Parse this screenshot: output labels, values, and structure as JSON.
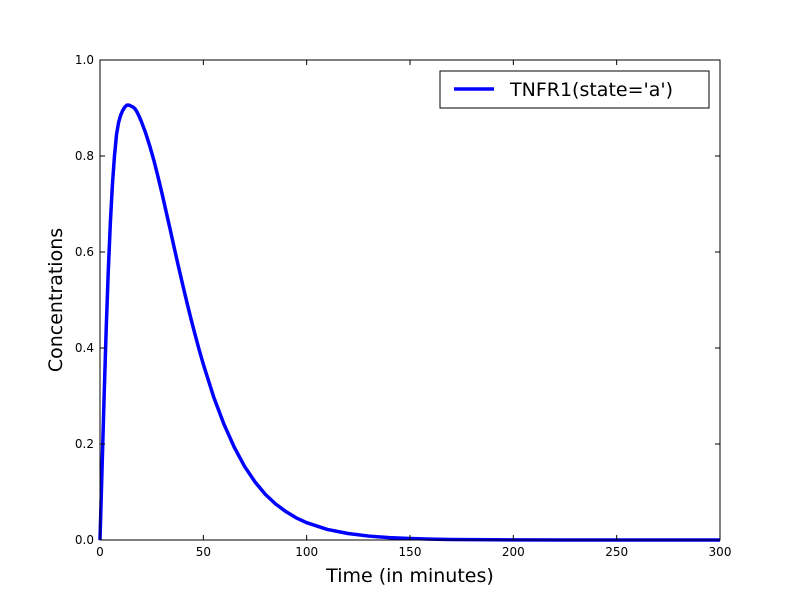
{
  "chart_data": {
    "type": "line",
    "title": "",
    "xlabel": "Time (in minutes)",
    "ylabel": "Concentrations",
    "xlim": [
      0,
      300
    ],
    "ylim": [
      0,
      1.0
    ],
    "xticks": [
      0,
      50,
      100,
      150,
      200,
      250,
      300
    ],
    "xtick_labels": [
      "0",
      "50",
      "100",
      "150",
      "200",
      "250",
      "300"
    ],
    "yticks": [
      0.0,
      0.2,
      0.4,
      0.6,
      0.8,
      1.0
    ],
    "ytick_labels": [
      "0.0",
      "0.2",
      "0.4",
      "0.6",
      "0.8",
      "1.0"
    ],
    "grid": false,
    "legend_position": "top-right",
    "series": [
      {
        "name": "TNFR1(state='a')",
        "color": "#0000ff",
        "x": [
          0,
          1,
          2,
          3,
          4,
          5,
          6,
          7,
          8,
          9,
          10,
          11,
          12,
          13,
          14,
          15,
          16,
          17,
          18,
          19,
          20,
          22,
          24,
          26,
          28,
          30,
          32,
          34,
          36,
          38,
          40,
          42,
          44,
          46,
          48,
          50,
          55,
          60,
          65,
          70,
          75,
          80,
          85,
          90,
          95,
          100,
          110,
          120,
          130,
          140,
          150,
          160,
          170,
          180,
          190,
          200,
          225,
          250,
          275,
          300
        ],
        "y": [
          0.0,
          0.15,
          0.3,
          0.44,
          0.56,
          0.66,
          0.74,
          0.8,
          0.845,
          0.87,
          0.885,
          0.895,
          0.902,
          0.906,
          0.906,
          0.904,
          0.902,
          0.898,
          0.891,
          0.882,
          0.872,
          0.849,
          0.822,
          0.792,
          0.758,
          0.722,
          0.684,
          0.646,
          0.607,
          0.569,
          0.532,
          0.496,
          0.461,
          0.428,
          0.396,
          0.366,
          0.298,
          0.241,
          0.193,
          0.153,
          0.121,
          0.095,
          0.075,
          0.059,
          0.046,
          0.036,
          0.022,
          0.0135,
          0.0082,
          0.0049,
          0.003,
          0.0018,
          0.0011,
          0.0007,
          0.0004,
          0.0002,
          5e-05,
          1e-05,
          0.0,
          0.0
        ]
      }
    ]
  }
}
